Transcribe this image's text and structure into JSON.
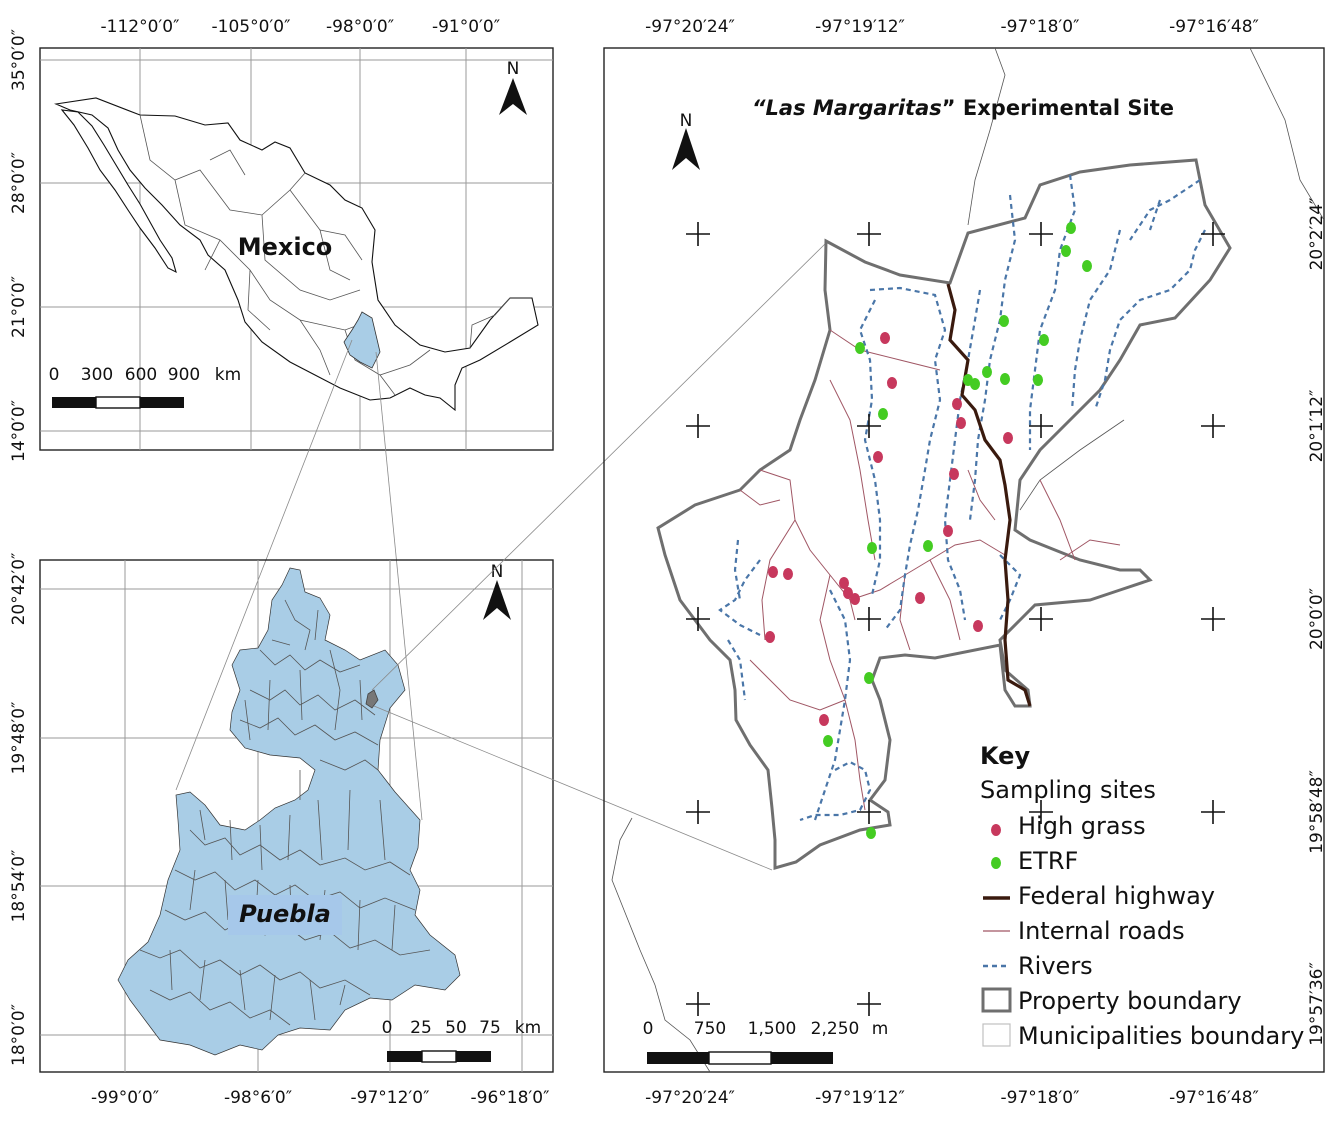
{
  "title": {
    "quote_open": "“",
    "name": "Las Margaritas",
    "quote_close": "”",
    "rest": " Experimental Site"
  },
  "mexico_map": {
    "label": "Mexico",
    "north": "N",
    "x_ticks": [
      "-112°0′0″",
      "-105°0′0″",
      "-98°0′0″",
      "-91°0′0″"
    ],
    "y_ticks": [
      "35°0′0″",
      "28°0′0″",
      "21°0′0″",
      "14°0′0″"
    ],
    "scale_labels": [
      "0",
      "300",
      "600",
      "900",
      "km"
    ],
    "fill_color": "#ffffff",
    "highlight_color": "#a9cde6"
  },
  "puebla_map": {
    "label": "Puebla",
    "north": "N",
    "x_ticks": [
      "-99°0′0″",
      "-98°6′0″",
      "-97°12′0″",
      "-96°18′0″"
    ],
    "y_ticks": [
      "20°42′0″",
      "19°48′0″",
      "18°54′0″",
      "18°0′0″"
    ],
    "scale_labels": [
      "0",
      "25",
      "50",
      "75",
      "km"
    ],
    "fill_color": "#a9cde6"
  },
  "site_map": {
    "north": "N",
    "x_ticks_top": [
      "-97°20′24″",
      "-97°19′12″",
      "-97°18′0″",
      "-97°16′48″"
    ],
    "x_ticks_bottom": [
      "-97°20′24″",
      "-97°19′12″",
      "-97°18′0″",
      "-97°16′48″"
    ],
    "y_ticks": [
      "20°2′24″",
      "20°1′12″",
      "20°0′0″",
      "19°58′48″",
      "19°57′36″"
    ],
    "scale_labels": [
      "0",
      "750",
      "1,500",
      "2,250",
      "m"
    ]
  },
  "key": {
    "title": "Key",
    "group_label": "Sampling sites",
    "items": [
      {
        "label": "High grass",
        "symbol": "dot",
        "color": "#c7385d"
      },
      {
        "label": "ETRF",
        "symbol": "dot",
        "color": "#44cc22"
      },
      {
        "label": "Federal highway",
        "symbol": "line",
        "color": "#3a1a0e"
      },
      {
        "label": "Internal roads",
        "symbol": "line",
        "color": "#a05664"
      },
      {
        "label": "Rivers",
        "symbol": "dashed",
        "color": "#4a76a8"
      },
      {
        "label": "Property boundary",
        "symbol": "box",
        "color": "#6f6f6f"
      },
      {
        "label": "Municipalities boundary",
        "symbol": "box",
        "color": "#c0c0c0"
      }
    ]
  }
}
